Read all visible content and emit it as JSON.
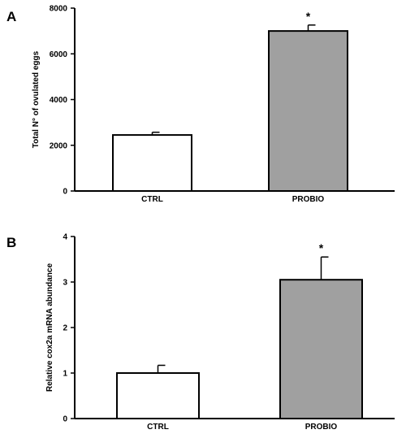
{
  "chart_data": [
    {
      "type": "bar",
      "panel": "A",
      "categories": [
        "CTRL",
        "PROBIO"
      ],
      "values": [
        2450,
        7000
      ],
      "errors": [
        120,
        260
      ],
      "significance": [
        "",
        "*"
      ],
      "ylabel": "Total N° of ovulated eggs",
      "xlabel": "",
      "ylim": [
        0,
        8000
      ],
      "yticks": [
        0,
        2000,
        4000,
        6000,
        8000
      ],
      "ytick_labels": [
        "0",
        "2000",
        "4000",
        "6000",
        "8000"
      ],
      "bar_colors": [
        "#ffffff",
        "#a0a0a0"
      ],
      "grid": false,
      "legend": "none"
    },
    {
      "type": "bar",
      "panel": "B",
      "categories": [
        "CTRL",
        "PROBIO"
      ],
      "values": [
        1.0,
        3.05
      ],
      "errors": [
        0.17,
        0.5
      ],
      "significance": [
        "",
        "*"
      ],
      "ylabel": "Relative cox2a mRNA abundance",
      "xlabel": "",
      "ylim": [
        0,
        4
      ],
      "yticks": [
        0,
        1,
        2,
        3,
        4
      ],
      "ytick_labels": [
        "0",
        "1",
        "2",
        "3",
        "4"
      ],
      "bar_colors": [
        "#ffffff",
        "#a0a0a0"
      ],
      "grid": false,
      "legend": "none"
    }
  ]
}
